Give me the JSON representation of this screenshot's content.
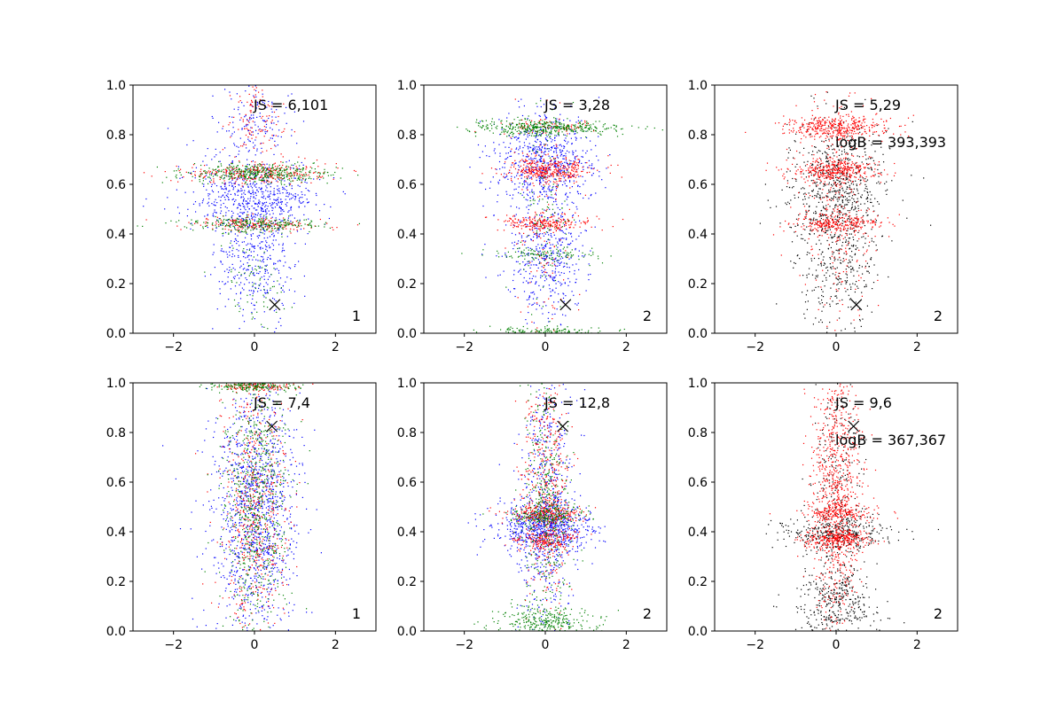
{
  "chart_data": [
    {
      "type": "scatter",
      "panel_label": "1",
      "annotations": [
        "JS = 6,101"
      ],
      "marker": {
        "x": 0.5,
        "y": 0.115
      },
      "xlim": [
        -3,
        3
      ],
      "ylim": [
        0.0,
        1.0
      ],
      "xticks": [
        "−2",
        "0",
        "2"
      ],
      "xtick_values": [
        -2,
        0,
        2
      ],
      "yticks": [
        "0.0",
        "0.2",
        "0.4",
        "0.6",
        "0.8",
        "1.0"
      ],
      "ytick_values": [
        0,
        0.2,
        0.4,
        0.6,
        0.8,
        1.0
      ],
      "series": [
        {
          "color": "#0000ff",
          "count": 1100,
          "bands": [
            {
              "y": 0.55,
              "sy": 0.07,
              "sx": 0.75,
              "w": 0.55
            },
            {
              "y": 0.28,
              "sy": 0.12,
              "sx": 0.45,
              "w": 0.3
            },
            {
              "y": 0.85,
              "sy": 0.08,
              "sx": 0.5,
              "w": 0.15
            }
          ]
        },
        {
          "color": "#ff0000",
          "count": 600,
          "bands": [
            {
              "y": 0.645,
              "sy": 0.02,
              "sx": 0.85,
              "w": 0.5
            },
            {
              "y": 0.44,
              "sy": 0.015,
              "sx": 0.8,
              "w": 0.3
            },
            {
              "y": 0.85,
              "sy": 0.1,
              "sx": 0.35,
              "w": 0.2
            }
          ]
        },
        {
          "color": "#008000",
          "count": 750,
          "bands": [
            {
              "y": 0.645,
              "sy": 0.02,
              "sx": 0.85,
              "w": 0.55
            },
            {
              "y": 0.44,
              "sy": 0.015,
              "sx": 0.8,
              "w": 0.35
            },
            {
              "y": 0.2,
              "sy": 0.1,
              "sx": 0.4,
              "w": 0.1
            }
          ]
        }
      ]
    },
    {
      "type": "scatter",
      "panel_label": "2",
      "annotations": [
        "JS = 3,28"
      ],
      "marker": {
        "x": 0.5,
        "y": 0.115
      },
      "xlim": [
        -3,
        3
      ],
      "ylim": [
        0.0,
        1.0
      ],
      "xticks": [
        "−2",
        "0",
        "2"
      ],
      "xtick_values": [
        -2,
        0,
        2
      ],
      "yticks": [
        "0.0",
        "0.2",
        "0.4",
        "0.6",
        "0.8",
        "1.0"
      ],
      "ytick_values": [
        0,
        0.2,
        0.4,
        0.6,
        0.8,
        1.0
      ],
      "series": [
        {
          "color": "#0000ff",
          "count": 1100,
          "bands": [
            {
              "y": 0.7,
              "sy": 0.09,
              "sx": 0.6,
              "w": 0.6
            },
            {
              "y": 0.3,
              "sy": 0.12,
              "sx": 0.45,
              "w": 0.4
            }
          ]
        },
        {
          "color": "#ff0000",
          "count": 800,
          "bands": [
            {
              "y": 0.66,
              "sy": 0.025,
              "sx": 0.55,
              "w": 0.45
            },
            {
              "y": 0.445,
              "sy": 0.015,
              "sx": 0.55,
              "w": 0.25
            },
            {
              "y": 0.83,
              "sy": 0.015,
              "sx": 0.6,
              "w": 0.1
            },
            {
              "y": 0.5,
              "sy": 0.25,
              "sx": 0.35,
              "w": 0.2
            }
          ]
        },
        {
          "color": "#008000",
          "count": 800,
          "bands": [
            {
              "y": 0.83,
              "sy": 0.015,
              "sx": 0.85,
              "w": 0.55
            },
            {
              "y": 0.32,
              "sy": 0.015,
              "sx": 0.6,
              "w": 0.15
            },
            {
              "y": 0.01,
              "sy": 0.008,
              "sx": 0.8,
              "w": 0.15
            },
            {
              "y": 0.5,
              "sy": 0.25,
              "sx": 0.35,
              "w": 0.15
            }
          ]
        }
      ]
    },
    {
      "type": "scatter",
      "panel_label": "2",
      "annotations": [
        "JS = 5,29",
        "logB = 393,393"
      ],
      "marker": {
        "x": 0.5,
        "y": 0.115
      },
      "xlim": [
        -3,
        3
      ],
      "ylim": [
        0.0,
        1.0
      ],
      "xticks": [
        "−2",
        "0",
        "2"
      ],
      "xtick_values": [
        -2,
        0,
        2
      ],
      "yticks": [
        "0.0",
        "0.2",
        "0.4",
        "0.6",
        "0.8",
        "1.0"
      ],
      "ytick_values": [
        0,
        0.2,
        0.4,
        0.6,
        0.8,
        1.0
      ],
      "series": [
        {
          "color": "#000000",
          "count": 1000,
          "bands": [
            {
              "y": 0.6,
              "sy": 0.14,
              "sx": 0.6,
              "w": 0.65
            },
            {
              "y": 0.3,
              "sy": 0.14,
              "sx": 0.5,
              "w": 0.35
            }
          ]
        },
        {
          "color": "#ff0000",
          "count": 1300,
          "bands": [
            {
              "y": 0.83,
              "sy": 0.025,
              "sx": 0.6,
              "w": 0.3
            },
            {
              "y": 0.655,
              "sy": 0.025,
              "sx": 0.55,
              "w": 0.3
            },
            {
              "y": 0.445,
              "sy": 0.02,
              "sx": 0.55,
              "w": 0.2
            },
            {
              "y": 0.5,
              "sy": 0.28,
              "sx": 0.45,
              "w": 0.2
            }
          ]
        }
      ]
    },
    {
      "type": "scatter",
      "panel_label": "1",
      "annotations": [
        "JS = 7,4"
      ],
      "marker": {
        "x": 0.43,
        "y": 0.825
      },
      "xlim": [
        -3,
        3
      ],
      "ylim": [
        0.0,
        1.0
      ],
      "xticks": [
        "−2",
        "0",
        "2"
      ],
      "xtick_values": [
        -2,
        0,
        2
      ],
      "yticks": [
        "0.0",
        "0.2",
        "0.4",
        "0.6",
        "0.8",
        "1.0"
      ],
      "ytick_values": [
        0,
        0.2,
        0.4,
        0.6,
        0.8,
        1.0
      ],
      "series": [
        {
          "color": "#0000ff",
          "count": 1200,
          "bands": [
            {
              "y": 0.5,
              "sy": 0.28,
              "sx": 0.55,
              "w": 1.0
            }
          ]
        },
        {
          "color": "#ff0000",
          "count": 700,
          "bands": [
            {
              "y": 0.5,
              "sy": 0.28,
              "sx": 0.4,
              "w": 0.8
            },
            {
              "y": 0.99,
              "sy": 0.01,
              "sx": 0.5,
              "w": 0.2
            }
          ]
        },
        {
          "color": "#008000",
          "count": 900,
          "bands": [
            {
              "y": 0.5,
              "sy": 0.28,
              "sx": 0.4,
              "w": 0.8
            },
            {
              "y": 0.99,
              "sy": 0.01,
              "sx": 0.55,
              "w": 0.2
            }
          ]
        }
      ]
    },
    {
      "type": "scatter",
      "panel_label": "2",
      "annotations": [
        "JS = 12,8"
      ],
      "marker": {
        "x": 0.43,
        "y": 0.825
      },
      "xlim": [
        -3,
        3
      ],
      "ylim": [
        0.0,
        1.0
      ],
      "xticks": [
        "−2",
        "0",
        "2"
      ],
      "xtick_values": [
        -2,
        0,
        2
      ],
      "yticks": [
        "0.0",
        "0.2",
        "0.4",
        "0.6",
        "0.8",
        "1.0"
      ],
      "ytick_values": [
        0,
        0.2,
        0.4,
        0.6,
        0.8,
        1.0
      ],
      "series": [
        {
          "color": "#0000ff",
          "count": 1200,
          "bands": [
            {
              "y": 0.42,
              "sy": 0.05,
              "sx": 0.6,
              "w": 0.5
            },
            {
              "y": 0.5,
              "sy": 0.28,
              "sx": 0.35,
              "w": 0.5
            }
          ]
        },
        {
          "color": "#ff0000",
          "count": 900,
          "bands": [
            {
              "y": 0.47,
              "sy": 0.02,
              "sx": 0.45,
              "w": 0.25
            },
            {
              "y": 0.37,
              "sy": 0.02,
              "sx": 0.4,
              "w": 0.2
            },
            {
              "y": 0.6,
              "sy": 0.25,
              "sx": 0.3,
              "w": 0.55
            }
          ]
        },
        {
          "color": "#008000",
          "count": 900,
          "bands": [
            {
              "y": 0.04,
              "sy": 0.03,
              "sx": 0.6,
              "w": 0.35
            },
            {
              "y": 0.47,
              "sy": 0.02,
              "sx": 0.45,
              "w": 0.2
            },
            {
              "y": 0.5,
              "sy": 0.28,
              "sx": 0.3,
              "w": 0.45
            }
          ]
        }
      ]
    },
    {
      "type": "scatter",
      "panel_label": "2",
      "annotations": [
        "JS = 9,6",
        "logB = 367,367"
      ],
      "marker": {
        "x": 0.43,
        "y": 0.825
      },
      "xlim": [
        -3,
        3
      ],
      "ylim": [
        0.0,
        1.0
      ],
      "xticks": [
        "−2",
        "0",
        "2"
      ],
      "xtick_values": [
        -2,
        0,
        2
      ],
      "yticks": [
        "0.0",
        "0.2",
        "0.4",
        "0.6",
        "0.8",
        "1.0"
      ],
      "ytick_values": [
        0,
        0.2,
        0.4,
        0.6,
        0.8,
        1.0
      ],
      "series": [
        {
          "color": "#000000",
          "count": 1000,
          "bands": [
            {
              "y": 0.4,
              "sy": 0.03,
              "sx": 0.65,
              "w": 0.35
            },
            {
              "y": 0.1,
              "sy": 0.08,
              "sx": 0.5,
              "w": 0.35
            },
            {
              "y": 0.5,
              "sy": 0.28,
              "sx": 0.3,
              "w": 0.3
            }
          ]
        },
        {
          "color": "#ff0000",
          "count": 1300,
          "bands": [
            {
              "y": 0.37,
              "sy": 0.02,
              "sx": 0.45,
              "w": 0.2
            },
            {
              "y": 0.48,
              "sy": 0.02,
              "sx": 0.45,
              "w": 0.15
            },
            {
              "y": 0.6,
              "sy": 0.28,
              "sx": 0.3,
              "w": 0.65
            }
          ]
        }
      ]
    }
  ]
}
